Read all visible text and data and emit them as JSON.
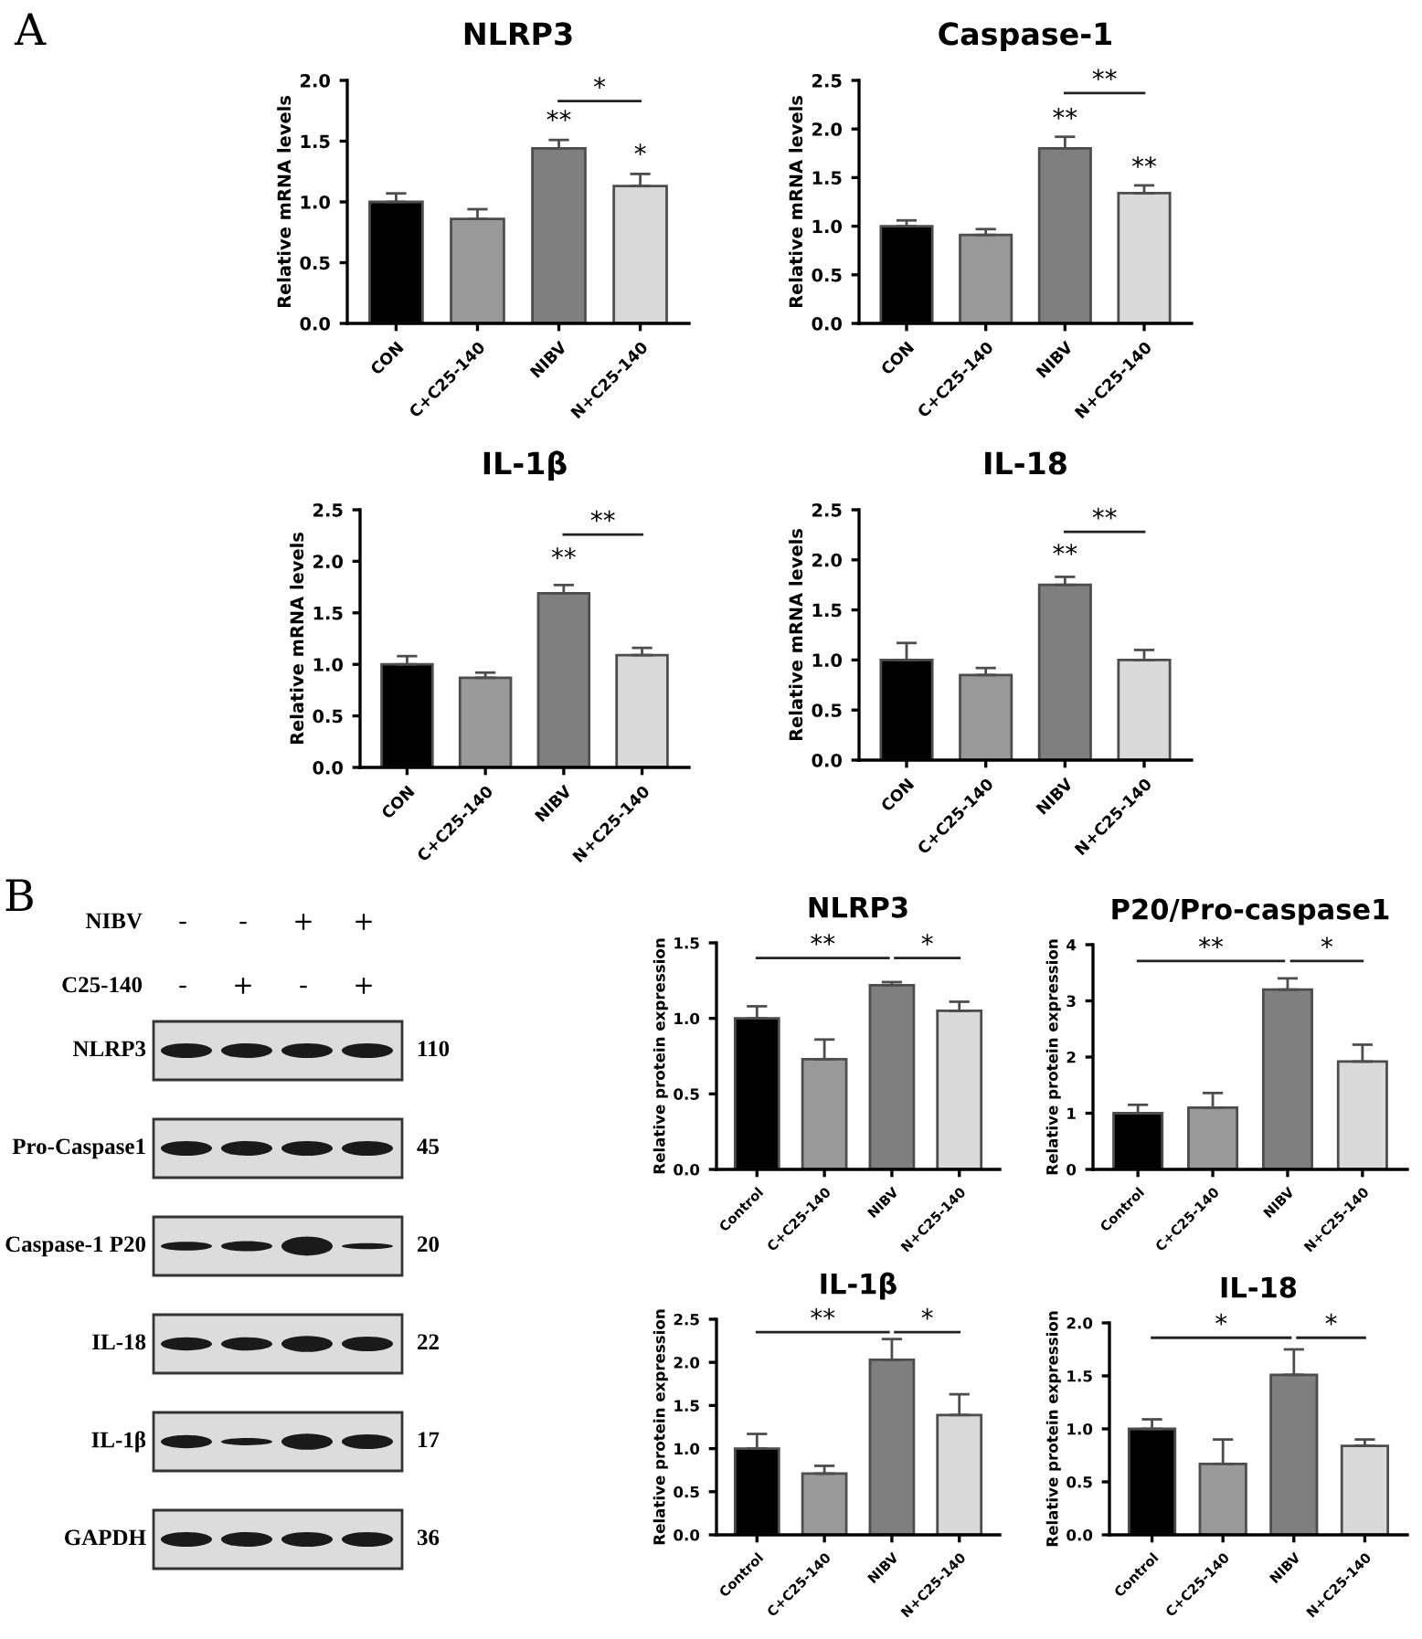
{
  "chart_data": [
    {
      "type": "bar",
      "title": "NLRP3",
      "ylabel": "Relative mRNA levels",
      "categories": [
        "CON",
        "C+C25-140",
        "NIBV",
        "N+C25-140"
      ],
      "values": [
        1.0,
        0.86,
        1.44,
        1.13
      ],
      "colors": [
        "#000000",
        "#999999",
        "#7f7f7f",
        "#d9d9d9"
      ],
      "errors": [
        [
          1.0,
          1.07
        ],
        [
          0.86,
          0.94
        ],
        [
          1.44,
          1.51
        ],
        [
          1.13,
          1.23
        ]
      ],
      "ylim": [
        0,
        2.0
      ],
      "yticks": [
        {
          "value": 0,
          "label": "0.0"
        },
        0.5,
        {
          "value": 1,
          "label": "1.0"
        },
        1.5,
        {
          "value": 2,
          "label": "2.0"
        }
      ],
      "grid": false,
      "legend": false,
      "annotations": [
        "A",
        "**",
        "*",
        "*"
      ]
    },
    {
      "type": "bar",
      "title": "Caspase-1",
      "ylabel": "Relative mRNA levels",
      "categories": [
        "CON",
        "C+C25-140",
        "NIBV",
        "N+C25-140"
      ],
      "values": [
        1.0,
        0.91,
        1.8,
        1.34
      ],
      "colors": [
        "#000000",
        "#999999",
        "#7f7f7f",
        "#d9d9d9"
      ],
      "errors": [
        [
          1.0,
          1.06
        ],
        [
          0.91,
          0.97
        ],
        [
          1.8,
          1.92
        ],
        [
          1.34,
          1.42
        ]
      ],
      "ylim": [
        0,
        2.5
      ],
      "yticks": [
        {
          "value": 0,
          "label": "0.0"
        },
        0.5,
        {
          "value": 1,
          "label": "1.0"
        },
        1.5,
        {
          "value": 2,
          "label": "2.0"
        },
        2.5
      ],
      "grid": false,
      "legend": false,
      "annotations": [
        "**",
        "**",
        "**"
      ]
    },
    {
      "type": "bar",
      "title": "IL-1β",
      "ylabel": "Relative mRNA levels",
      "categories": [
        "CON",
        "C+C25-140",
        "NIBV",
        "N+C25-140"
      ],
      "values": [
        1.0,
        0.87,
        1.69,
        1.09
      ],
      "colors": [
        "#000000",
        "#999999",
        "#7f7f7f",
        "#d9d9d9"
      ],
      "errors": [
        [
          1.0,
          1.08
        ],
        [
          0.87,
          0.92
        ],
        [
          1.69,
          1.77
        ],
        [
          1.09,
          1.16
        ]
      ],
      "ylim": [
        0,
        2.5
      ],
      "yticks": [
        {
          "value": 0,
          "label": "0.0"
        },
        0.5,
        {
          "value": 1,
          "label": "1.0"
        },
        1.5,
        {
          "value": 2,
          "label": "2.0"
        },
        2.5
      ],
      "grid": false,
      "legend": false,
      "annotations": [
        "**",
        "**"
      ]
    },
    {
      "type": "bar",
      "title": "IL-18",
      "ylabel": "Relative mRNA levels",
      "categories": [
        "CON",
        "C+C25-140",
        "NIBV",
        "N+C25-140"
      ],
      "values": [
        1.0,
        0.85,
        1.75,
        1.0
      ],
      "colors": [
        "#000000",
        "#999999",
        "#7f7f7f",
        "#d9d9d9"
      ],
      "errors": [
        [
          1.0,
          1.17
        ],
        [
          0.85,
          0.92
        ],
        [
          1.75,
          1.83
        ],
        [
          1.0,
          1.1
        ]
      ],
      "ylim": [
        0,
        2.5
      ],
      "yticks": [
        {
          "value": 0,
          "label": "0.0"
        },
        0.5,
        {
          "value": 1,
          "label": "1.0"
        },
        1.5,
        {
          "value": 2,
          "label": "2.0"
        },
        2.5
      ],
      "grid": false,
      "legend": false,
      "annotations": [
        "**",
        "**"
      ]
    },
    {
      "type": "other",
      "annotations": [
        "B",
        "NIBV",
        "-",
        "-",
        "+",
        "+",
        "C25-140",
        "-",
        "+",
        "-",
        "+",
        "NLRP3",
        "110",
        "Pro-Caspase1",
        "45",
        "Caspase-1 P20",
        "20",
        "IL-18",
        "22",
        "IL-1β",
        "17",
        "GAPDH",
        "36"
      ]
    },
    {
      "type": "bar",
      "title": "NLRP3",
      "ylabel": "Relative protein expression",
      "categories": [
        "Control",
        "C+C25-140",
        "NIBV",
        "N+C25-140"
      ],
      "values": [
        1.0,
        0.73,
        1.22,
        1.05
      ],
      "colors": [
        "#000000",
        "#999999",
        "#7f7f7f",
        "#d9d9d9"
      ],
      "errors": [
        [
          1.0,
          1.08
        ],
        [
          0.73,
          0.86
        ],
        [
          1.22,
          1.24
        ],
        [
          1.05,
          1.11
        ]
      ],
      "ylim": [
        0,
        1.5
      ],
      "yticks": [
        {
          "value": 0,
          "label": "0.0"
        },
        0.5,
        {
          "value": 1,
          "label": "1.0"
        },
        1.5
      ],
      "grid": false,
      "legend": false,
      "annotations": [
        "**",
        "*"
      ]
    },
    {
      "type": "bar",
      "title": "P20/Pro-caspase1",
      "ylabel": "Relative protein expression",
      "categories": [
        "Control",
        "C+C25-140",
        "NIBV",
        "N+C25-140"
      ],
      "values": [
        1.0,
        1.1,
        3.2,
        1.92
      ],
      "colors": [
        "#000000",
        "#999999",
        "#7f7f7f",
        "#d9d9d9"
      ],
      "errors": [
        [
          1.0,
          1.15
        ],
        [
          1.1,
          1.36
        ],
        [
          3.2,
          3.4
        ],
        [
          1.92,
          2.22
        ]
      ],
      "ylim": [
        0,
        4
      ],
      "yticks": [
        0,
        1,
        2,
        3,
        4
      ],
      "grid": false,
      "legend": false,
      "annotations": [
        "**",
        "*"
      ]
    },
    {
      "type": "bar",
      "title": "IL-1β",
      "ylabel": "Relative protein expression",
      "categories": [
        "Control",
        "C+C25-140",
        "NIBV",
        "N+C25-140"
      ],
      "values": [
        1.0,
        0.71,
        2.03,
        1.39
      ],
      "colors": [
        "#000000",
        "#999999",
        "#7f7f7f",
        "#d9d9d9"
      ],
      "errors": [
        [
          1.0,
          1.17
        ],
        [
          0.71,
          0.8
        ],
        [
          2.03,
          2.27
        ],
        [
          1.39,
          1.63
        ]
      ],
      "ylim": [
        0,
        2.5
      ],
      "yticks": [
        {
          "value": 0,
          "label": "0.0"
        },
        0.5,
        {
          "value": 1,
          "label": "1.0"
        },
        1.5,
        {
          "value": 2,
          "label": "2.0"
        },
        2.5
      ],
      "grid": false,
      "legend": false,
      "annotations": [
        "**",
        "*"
      ]
    },
    {
      "type": "bar",
      "title": "IL-18",
      "ylabel": "Relative protein expression",
      "categories": [
        "Control",
        "C+C25-140",
        "NIBV",
        "N+C25-140"
      ],
      "values": [
        1.0,
        0.67,
        1.51,
        0.84
      ],
      "colors": [
        "#000000",
        "#999999",
        "#7f7f7f",
        "#d9d9d9"
      ],
      "errors": [
        [
          1.0,
          1.09
        ],
        [
          0.67,
          0.9
        ],
        [
          1.51,
          1.75
        ],
        [
          0.84,
          0.9
        ]
      ],
      "ylim": [
        0,
        2.0
      ],
      "yticks": [
        {
          "value": 0,
          "label": "0.0"
        },
        0.5,
        {
          "value": 1,
          "label": "1.0"
        },
        1.5,
        {
          "value": 2,
          "label": "2.0"
        }
      ],
      "grid": false,
      "legend": false,
      "annotations": [
        "*",
        "*"
      ]
    }
  ]
}
